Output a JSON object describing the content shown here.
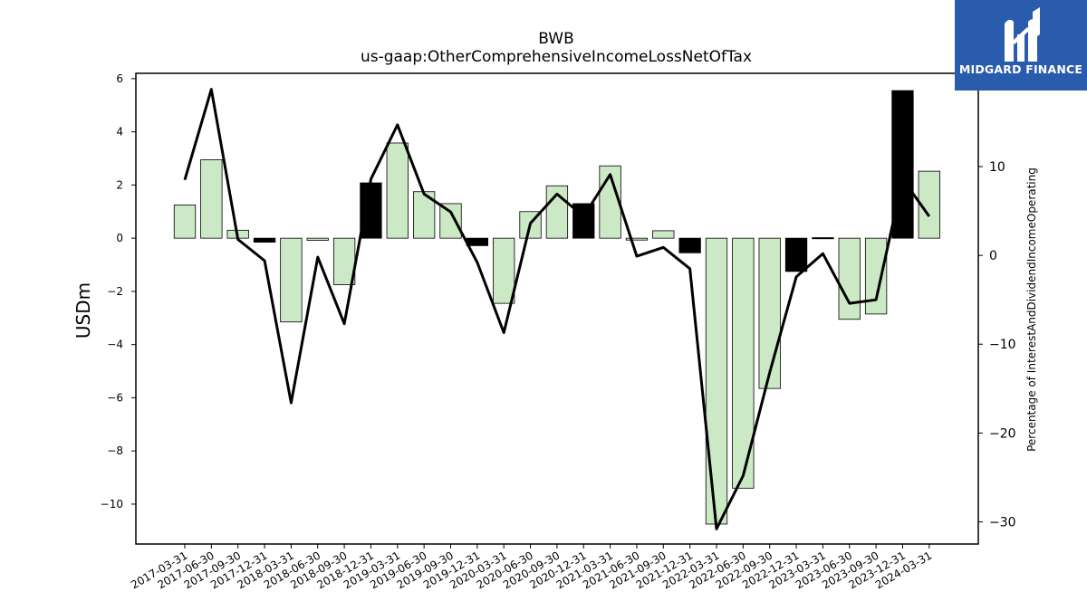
{
  "brand": {
    "name": "MIDGARD FINANCE",
    "color": "#2a5cad"
  },
  "chart_data": {
    "type": "bar",
    "title": "BWB",
    "subtitle": "us-gaap:OtherComprehensiveIncomeLossNetOfTax",
    "ylabel": "USDm",
    "y2label": "Percentage of InterestAndDividendIncomeOperating",
    "ylim": [
      -11.5,
      6.2
    ],
    "y2lim": [
      -32.5,
      20.5
    ],
    "yticks": [
      6,
      4,
      2,
      0,
      -2,
      -4,
      -6,
      -8,
      -10
    ],
    "y2ticks": [
      10,
      0,
      -10,
      -20,
      -30
    ],
    "categories": [
      "2017-03-31",
      "2017-06-30",
      "2017-09-30",
      "2017-12-31",
      "2018-03-31",
      "2018-06-30",
      "2018-09-30",
      "2018-12-31",
      "2019-03-31",
      "2019-06-30",
      "2019-09-30",
      "2019-12-31",
      "2020-03-31",
      "2020-06-30",
      "2020-09-30",
      "2020-12-31",
      "2021-03-31",
      "2021-06-30",
      "2021-09-30",
      "2021-12-31",
      "2022-03-31",
      "2022-06-30",
      "2022-09-30",
      "2022-12-31",
      "2023-03-31",
      "2023-06-30",
      "2023-09-30",
      "2023-12-31",
      "2024-03-31"
    ],
    "series": [
      {
        "kind": "bar",
        "axis": "left",
        "values": [
          1.25,
          2.95,
          0.3,
          -0.15,
          -3.15,
          -0.08,
          -1.75,
          2.08,
          3.58,
          1.75,
          1.3,
          -0.28,
          -2.45,
          1.0,
          1.97,
          1.3,
          2.72,
          -0.07,
          0.28,
          -0.55,
          -10.75,
          -9.4,
          -5.65,
          -1.25,
          0.02,
          -3.05,
          -2.85,
          5.55,
          2.52
        ],
        "colors": {
          "positive": "#cce9c5",
          "negative": "#cce9c5",
          "highlight": "#000000",
          "edge": "#000000"
        },
        "highlighted": [
          "2017-12-31",
          "2018-12-31",
          "2019-12-31",
          "2020-12-31",
          "2021-12-31",
          "2022-12-31",
          "2023-03-31",
          "2023-12-31"
        ]
      },
      {
        "kind": "line",
        "axis": "right",
        "color": "#000000",
        "values": [
          8.5,
          18.7,
          1.8,
          -0.6,
          -16.6,
          -0.2,
          -7.7,
          8.6,
          14.7,
          6.9,
          4.9,
          -0.8,
          -8.7,
          3.6,
          6.9,
          4.4,
          9.1,
          -0.1,
          0.9,
          -1.5,
          -30.8,
          -24.8,
          -13.2,
          -2.4,
          0.2,
          -5.4,
          -5.0,
          8.6,
          4.4
        ]
      }
    ]
  }
}
